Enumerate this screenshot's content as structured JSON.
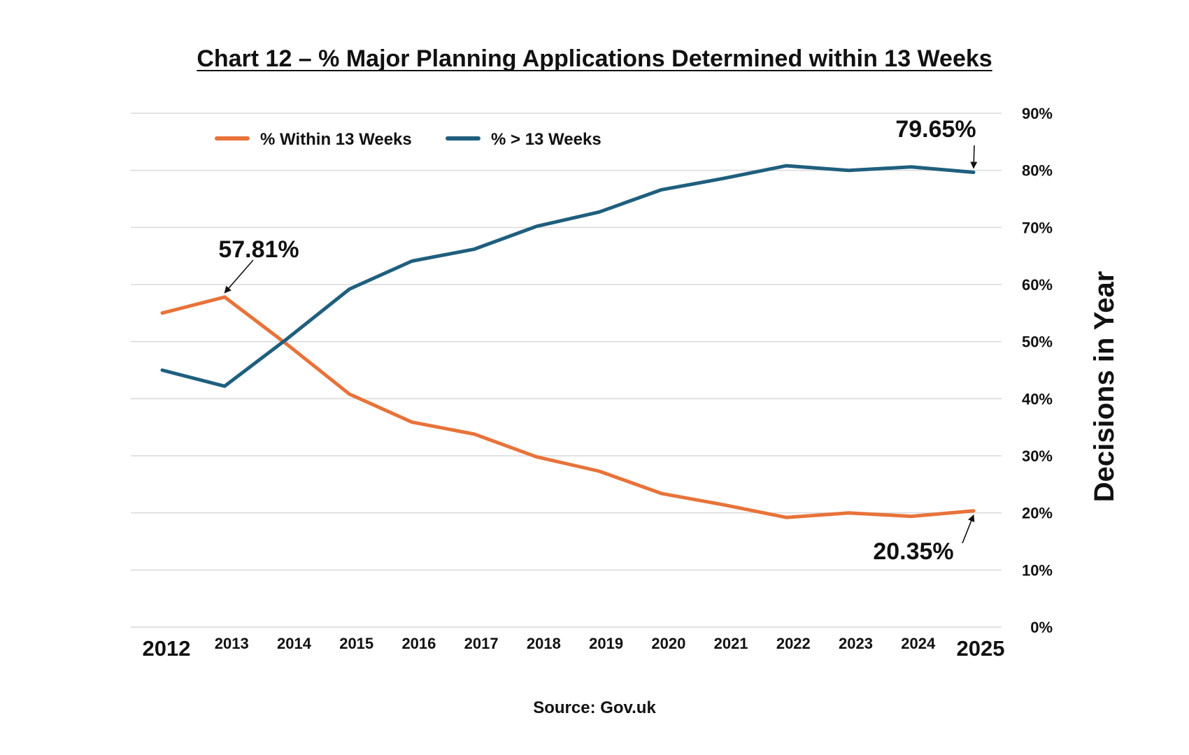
{
  "colors": {
    "within": "#e8733a",
    "over": "#1f5f7e",
    "grid": "#d9d9d9",
    "text": "#111111"
  },
  "source": "Source: Gov.uk",
  "chart_data": {
    "type": "line",
    "title": "Chart 12 – % Major Planning Applications Determined within 13 Weeks",
    "xlabel": "",
    "ylabel": "Decisions in Year",
    "y_axis_side": "right",
    "ylim": [
      0,
      90
    ],
    "yticks": [
      0,
      10,
      20,
      30,
      40,
      50,
      60,
      70,
      80,
      90
    ],
    "ytick_labels": [
      "0%",
      "10%",
      "20%",
      "30%",
      "40%",
      "50%",
      "60%",
      "70%",
      "80%",
      "90%"
    ],
    "grid": true,
    "legend_position": "top-left",
    "x": [
      "2012",
      "2013",
      "2014",
      "2015",
      "2016",
      "2017",
      "2018",
      "2019",
      "2020",
      "2021",
      "2022",
      "2023",
      "2024",
      "2025"
    ],
    "series": [
      {
        "name": "% Within 13 Weeks",
        "color": "#e8733a",
        "values": [
          55.0,
          57.81,
          49.5,
          40.8,
          35.9,
          33.8,
          29.8,
          27.3,
          23.4,
          21.4,
          19.2,
          20.0,
          19.4,
          20.35
        ]
      },
      {
        "name": "% > 13 Weeks",
        "color": "#1f5f7e",
        "values": [
          45.0,
          42.19,
          50.5,
          59.2,
          64.1,
          66.2,
          70.2,
          72.7,
          76.6,
          78.6,
          80.8,
          80.0,
          80.6,
          79.65
        ]
      }
    ],
    "annotations": [
      {
        "text": "57.81%",
        "series": 0,
        "x": "2013",
        "y": 57.81
      },
      {
        "text": "79.65%",
        "series": 1,
        "x": "2025",
        "y": 79.65
      },
      {
        "text": "20.35%",
        "series": 0,
        "x": "2025",
        "y": 20.35
      }
    ]
  }
}
